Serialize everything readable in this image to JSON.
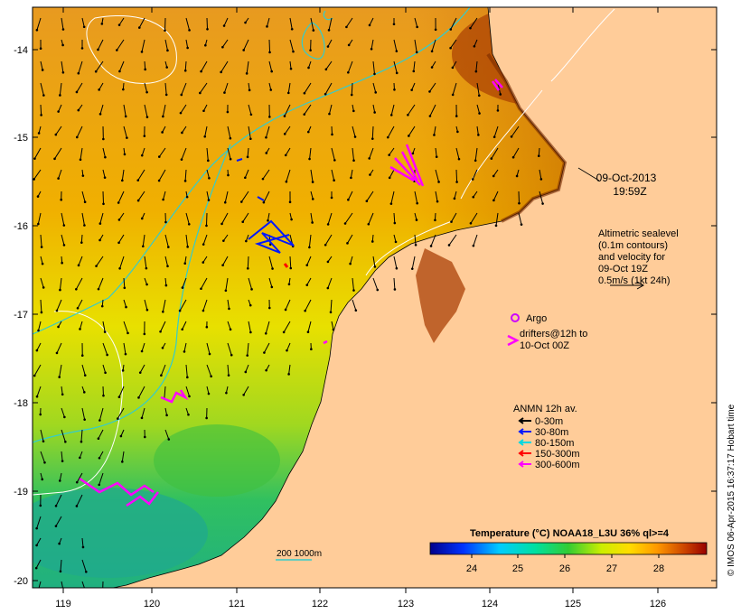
{
  "map": {
    "timestamp_date": "09-Oct-2013",
    "timestamp_time": "19:59Z",
    "lon_ticks": [
      "119",
      "120",
      "121",
      "122",
      "123",
      "124",
      "125",
      "126"
    ],
    "lat_ticks": [
      "-14",
      "-15",
      "-16",
      "-17",
      "-18",
      "-19",
      "-20"
    ],
    "altimetry_note": [
      "Altimetric sealevel",
      "(0.1m contours)",
      "and velocity for",
      "09-Oct 19Z",
      "0.5m/s (1kt 24h)"
    ],
    "argo_label": "Argo",
    "drifters_label": [
      "drifters@12h to",
      "10-Oct 00Z"
    ],
    "anmn_title": "ANMN 12h av.",
    "anmn_legend": [
      {
        "label": "0-30m",
        "color": "#000000"
      },
      {
        "label": "30-80m",
        "color": "#0018ff"
      },
      {
        "label": "80-150m",
        "color": "#00d8e0"
      },
      {
        "label": "150-300m",
        "color": "#ff0000"
      },
      {
        "label": "300-600m",
        "color": "#ff00ff"
      }
    ],
    "isobath_label": "200  1000m",
    "colorbar_title": "Temperature (°C) NOAA18_L3U 36% ql>=4",
    "colorbar_ticks": [
      "24",
      "25",
      "26",
      "27",
      "28"
    ],
    "credit": "© IMOS 06-Apr-2015 16:37:17 Hobart time",
    "colors": {
      "land": "#ffcc99",
      "argo": "#cc00ff",
      "drifter": "#ff00ff",
      "current_arrow": "#000000",
      "isobath": "#33cccc"
    }
  }
}
